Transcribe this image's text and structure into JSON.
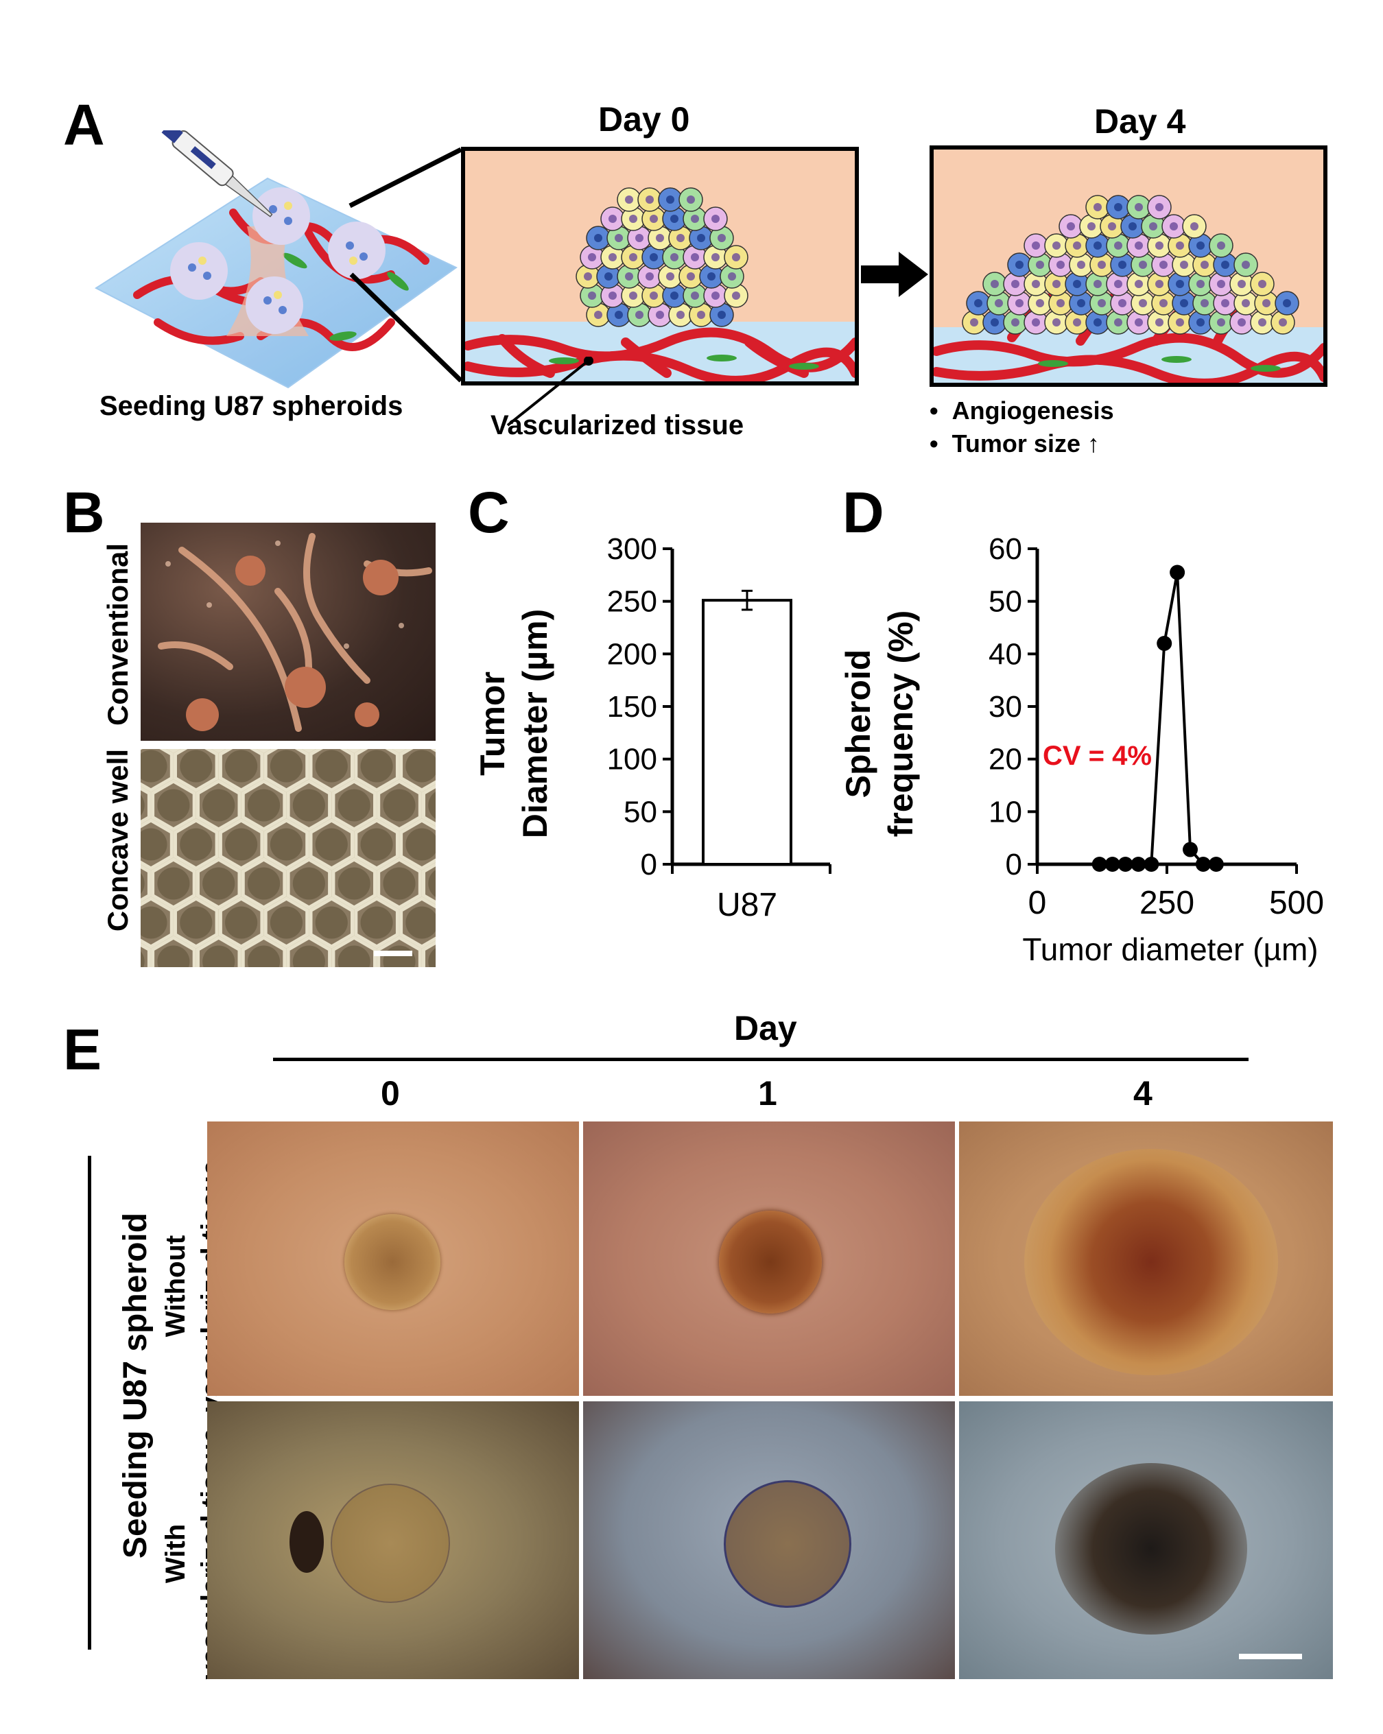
{
  "panels": {
    "a": "A",
    "b": "B",
    "c": "C",
    "d": "D",
    "e": "E"
  },
  "panel_a": {
    "seeding_label": "Seeding U87 spheroids",
    "day0_title": "Day 0",
    "day4_title": "Day 4",
    "vascularized_label": "Vascularized tissue",
    "bullets": [
      "Angiogenesis",
      "Tumor size ↑"
    ]
  },
  "panel_b": {
    "row_labels": [
      "Conventional",
      "Concave well"
    ]
  },
  "chart_data": [
    {
      "id": "C",
      "type": "bar",
      "categories": [
        "U87"
      ],
      "values": [
        251
      ],
      "error": [
        9
      ],
      "ylabel_lines": [
        "Tumor",
        "Diameter (µm)"
      ],
      "ylim": [
        0,
        300
      ],
      "yticks": [
        "0",
        "50",
        "100",
        "150",
        "200",
        "250",
        "300"
      ]
    },
    {
      "id": "D",
      "type": "line",
      "x": [
        120,
        145,
        170,
        195,
        220,
        245,
        270,
        295,
        320,
        345
      ],
      "y": [
        0,
        0,
        0,
        0,
        0,
        42,
        55.5,
        2.8,
        0,
        0
      ],
      "xlabel": "Tumor diameter (µm)",
      "ylabel_lines": [
        "Spheroid",
        "frequency (%)"
      ],
      "xlim": [
        0,
        500
      ],
      "ylim": [
        0,
        60
      ],
      "xticks": [
        "0",
        "250",
        "500"
      ],
      "yticks": [
        "0",
        "10",
        "20",
        "30",
        "40",
        "50",
        "60"
      ],
      "annotation": "CV = 4%",
      "annotation_color": "#e8101c"
    }
  ],
  "panel_e": {
    "header": "Day",
    "days": [
      "0",
      "1",
      "4"
    ],
    "side_label": "Seeding  U87 spheroid",
    "row_labels": [
      [
        "Without",
        "vascularized tissue"
      ],
      [
        "With",
        "vascularized tissue"
      ]
    ]
  }
}
